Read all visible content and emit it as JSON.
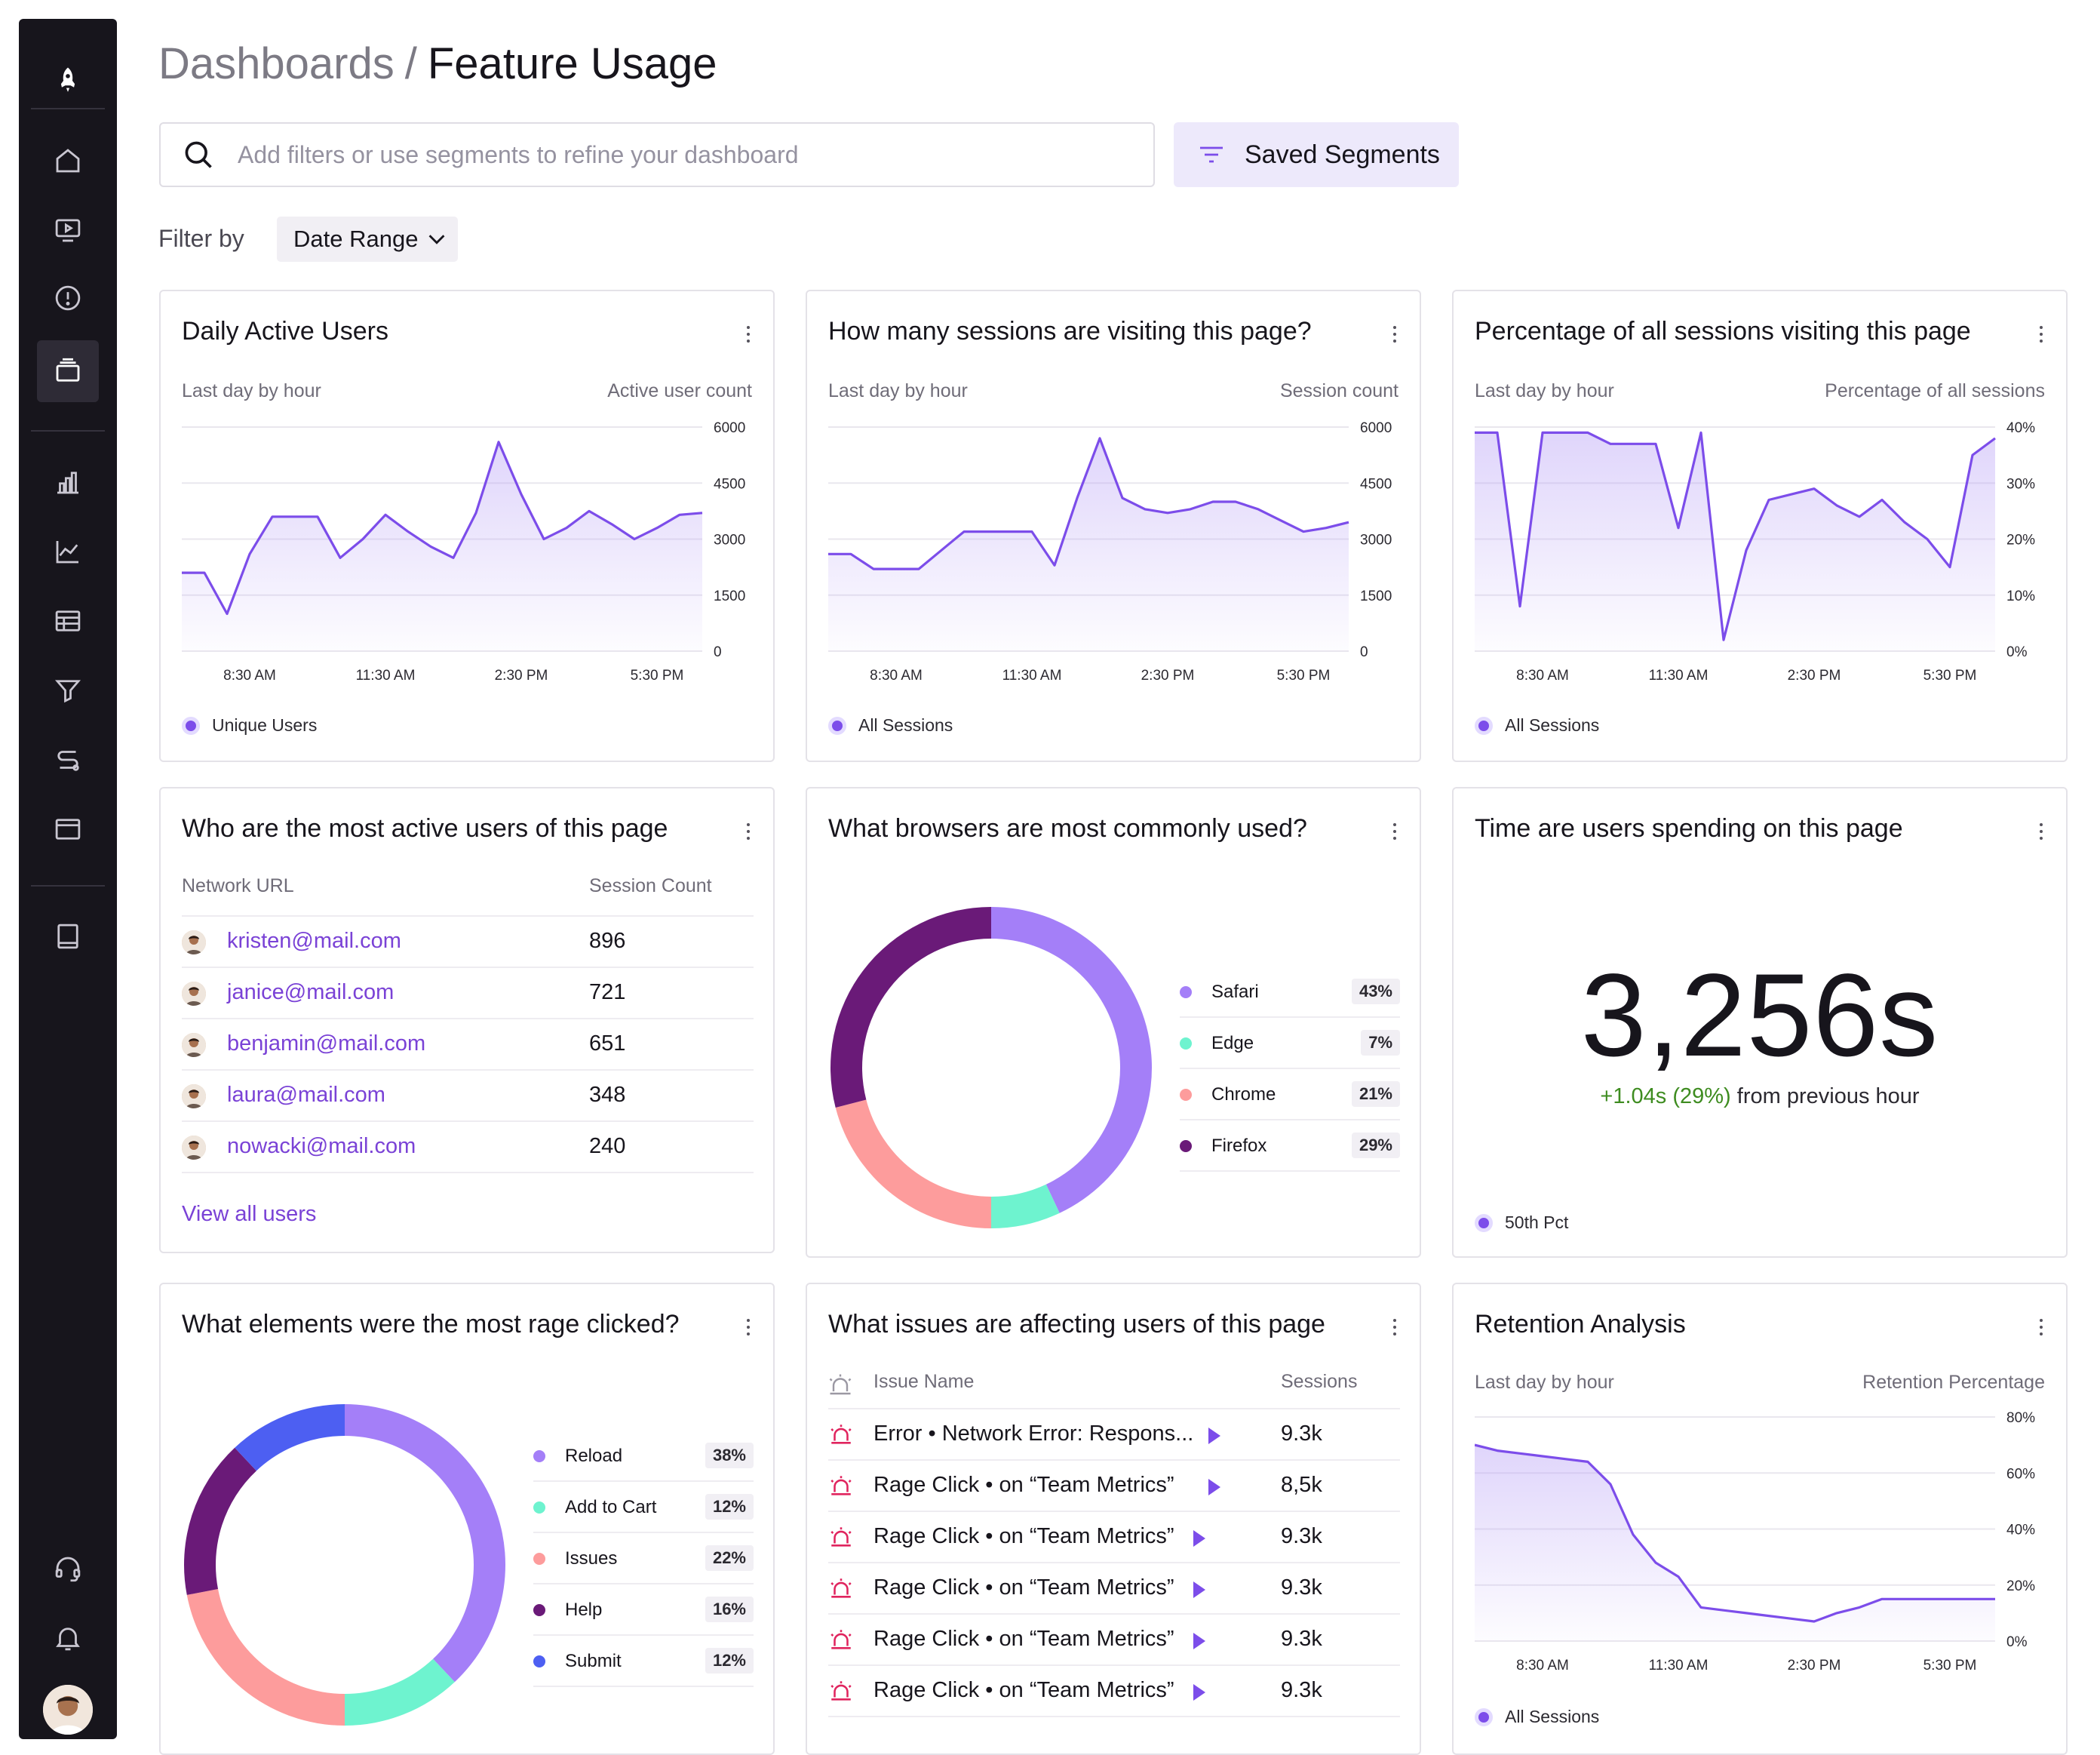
{
  "breadcrumb": {
    "parent": "Dashboards",
    "separator": "/",
    "current": "Feature Usage"
  },
  "search": {
    "placeholder": "Add filters or use segments to refine your dashboard"
  },
  "saved_segments_label": "Saved Segments",
  "filter": {
    "label": "Filter by",
    "date_range_label": "Date Range"
  },
  "colors": {
    "accent": "#7c4dea",
    "sidebar": "#17151c",
    "positive": "#3e8c20"
  },
  "sidebar_icons": [
    "rocket-logo-icon",
    "home-icon",
    "play-video-icon",
    "alert-circle-icon",
    "layers-icon",
    "bar-chart-icon",
    "line-chart-icon",
    "table-icon",
    "funnel-icon",
    "path-icon",
    "window-icon",
    "book-icon",
    "headset-icon",
    "bell-icon"
  ],
  "cards": {
    "dau": {
      "title": "Daily Active Users",
      "sub_left": "Last day by hour",
      "sub_right": "Active user count",
      "legend": "Unique Users",
      "chart_data": {
        "type": "area",
        "x": [
          0,
          1,
          2,
          3,
          4,
          5,
          6,
          7,
          8,
          9,
          10,
          11,
          12,
          13,
          14,
          15,
          16,
          17,
          18,
          19,
          20,
          21,
          22,
          23
        ],
        "values": [
          2100,
          2100,
          1000,
          2600,
          3600,
          3600,
          3600,
          2500,
          3000,
          3650,
          3200,
          2800,
          2500,
          3700,
          5600,
          4200,
          3000,
          3300,
          3750,
          3400,
          3000,
          3300,
          3650,
          3700
        ],
        "ylim": [
          0,
          6000
        ],
        "yticks": [
          "6000",
          "4500",
          "3000",
          "1500",
          "0"
        ],
        "xticks": [
          "8:30 AM",
          "11:30 AM",
          "2:30 PM",
          "5:30 PM"
        ],
        "ytick_suffix": ""
      }
    },
    "sessions": {
      "title": "How many sessions are visiting this page?",
      "sub_left": "Last day by hour",
      "sub_right": "Session count",
      "legend": "All Sessions",
      "chart_data": {
        "type": "area",
        "x": [
          0,
          1,
          2,
          3,
          4,
          5,
          6,
          7,
          8,
          9,
          10,
          11,
          12,
          13,
          14,
          15,
          16,
          17,
          18,
          19,
          20,
          21,
          22,
          23
        ],
        "values": [
          2600,
          2600,
          2200,
          2200,
          2200,
          2700,
          3200,
          3200,
          3200,
          3200,
          2300,
          4100,
          5700,
          4100,
          3800,
          3700,
          3800,
          4000,
          4000,
          3800,
          3500,
          3200,
          3300,
          3450
        ],
        "ylim": [
          0,
          6000
        ],
        "yticks": [
          "6000",
          "4500",
          "3000",
          "1500",
          "0"
        ],
        "xticks": [
          "8:30 AM",
          "11:30 AM",
          "2:30 PM",
          "5:30 PM"
        ],
        "ytick_suffix": ""
      }
    },
    "pct": {
      "title": "Percentage of all sessions visiting this page",
      "sub_left": "Last day by hour",
      "sub_right": "Percentage of all sessions",
      "legend": "All Sessions",
      "chart_data": {
        "type": "area",
        "x": [
          0,
          1,
          2,
          3,
          4,
          5,
          6,
          7,
          8,
          9,
          10,
          11,
          12,
          13,
          14,
          15,
          16,
          17,
          18,
          19,
          20,
          21,
          22,
          23
        ],
        "values": [
          39,
          39,
          8,
          39,
          39,
          39,
          37,
          37,
          37,
          22,
          39,
          2,
          18,
          27,
          28,
          29,
          26,
          24,
          27,
          23,
          20,
          15,
          35,
          38
        ],
        "ylim": [
          0,
          40
        ],
        "yticks": [
          "40%",
          "30%",
          "20%",
          "10%",
          "0%"
        ],
        "xticks": [
          "8:30 AM",
          "11:30 AM",
          "2:30 PM",
          "5:30 PM"
        ],
        "ytick_suffix": "%"
      }
    },
    "users": {
      "title": "Who are the most active users of this page",
      "col1": "Network URL",
      "col2": "Session Count",
      "rows": [
        {
          "email": "kristen@mail.com",
          "count": "896"
        },
        {
          "email": "janice@mail.com",
          "count": "721"
        },
        {
          "email": "benjamin@mail.com",
          "count": "651"
        },
        {
          "email": "laura@mail.com",
          "count": "348"
        },
        {
          "email": "nowacki@mail.com",
          "count": "240"
        }
      ],
      "link": "View all users"
    },
    "browsers": {
      "title": "What browsers are most commonly used?",
      "chart_data": {
        "type": "pie",
        "labels": [
          "Safari",
          "Edge",
          "Chrome",
          "Firefox"
        ],
        "labels_display": [
          "Safari",
          "Edge",
          "Chrome",
          "Firefox"
        ],
        "values": [
          43,
          7,
          21,
          29
        ],
        "display": [
          "43%",
          "7%",
          "21%",
          "29%"
        ],
        "colors": [
          "#a47ff8",
          "#6ef3cf",
          "#fd9c9c",
          "#6a1a78"
        ]
      }
    },
    "time": {
      "title": "Time are users spending on this page",
      "value": "3,256s",
      "delta_value": "+1.04s (29%)",
      "delta_text": "from previous hour",
      "legend": "50th Pct"
    },
    "rage": {
      "title": "What elements were the most rage clicked?",
      "chart_data": {
        "type": "pie",
        "labels": [
          "Reload",
          "Add to Cart",
          "Issues",
          "Help",
          "Submit"
        ],
        "values": [
          38,
          12,
          22,
          16,
          12
        ],
        "display": [
          "38%",
          "12%",
          "22%",
          "16%",
          "12%"
        ],
        "colors": [
          "#a47ff8",
          "#6ef3cf",
          "#fd9c9c",
          "#6a1a78",
          "#4d5ff2"
        ]
      }
    },
    "issues": {
      "title": "What issues are affecting users of this page",
      "col1": "Issue Name",
      "col2": "Sessions",
      "rows": [
        {
          "type": "Error",
          "detail": "Network Error: Respons...",
          "sessions": "9.3k"
        },
        {
          "type": "Rage Click",
          "detail": "on “Team Metrics”",
          "sessions": "8,5k"
        },
        {
          "type": "Rage Click",
          "detail": "on “Team Metrics”",
          "sessions": "9.3k"
        },
        {
          "type": "Rage Click",
          "detail": "on “Team Metrics”",
          "sessions": "9.3k"
        },
        {
          "type": "Rage Click",
          "detail": "on “Team Metrics”",
          "sessions": "9.3k"
        },
        {
          "type": "Rage Click",
          "detail": "on “Team Metrics”",
          "sessions": "9.3k"
        }
      ]
    },
    "retention": {
      "title": "Retention Analysis",
      "sub_left": "Last day by hour",
      "sub_right": "Retention Percentage",
      "legend": "All Sessions",
      "chart_data": {
        "type": "area",
        "x": [
          0,
          1,
          2,
          3,
          4,
          5,
          6,
          7,
          8,
          9,
          10,
          11,
          12,
          13,
          14,
          15,
          16,
          17,
          18,
          19,
          20,
          21,
          22,
          23
        ],
        "values": [
          70,
          68,
          67,
          66,
          65,
          64,
          56,
          38,
          28,
          23,
          12,
          11,
          10,
          9,
          8,
          7,
          10,
          12,
          15,
          15,
          15,
          15,
          15,
          15
        ],
        "ylim": [
          0,
          80
        ],
        "yticks": [
          "80%",
          "60%",
          "40%",
          "20%",
          "0%"
        ],
        "xticks": [
          "8:30 AM",
          "11:30 AM",
          "2:30 PM",
          "5:30 PM"
        ],
        "ytick_suffix": "%"
      }
    }
  }
}
